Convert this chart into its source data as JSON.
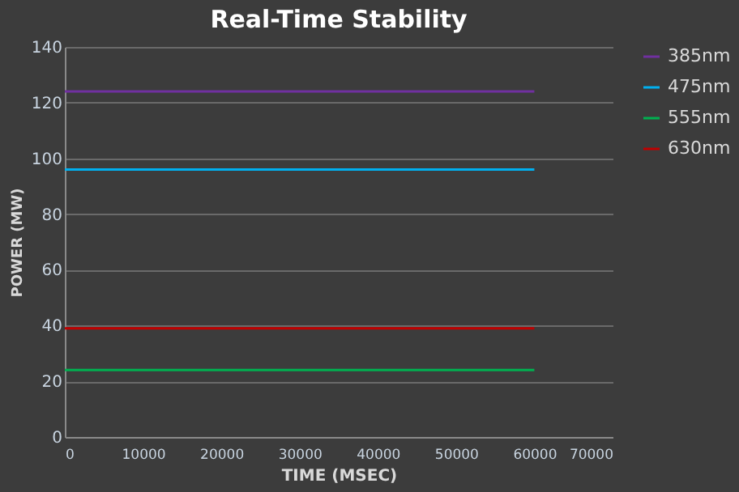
{
  "chart_data": {
    "type": "line",
    "title": "Real-Time Stability",
    "xlabel": "TIME  (MSEC)",
    "ylabel": "POWER (MW)",
    "x": [
      0,
      60000
    ],
    "series": [
      {
        "name": "385nm",
        "color": "#7030a0",
        "values": [
          124,
          124
        ]
      },
      {
        "name": "475nm",
        "color": "#00b0f0",
        "values": [
          96,
          96
        ]
      },
      {
        "name": "555nm",
        "color": "#00b050",
        "values": [
          24,
          24
        ]
      },
      {
        "name": "630nm",
        "color": "#c00000",
        "values": [
          39,
          39
        ]
      }
    ],
    "xlim": [
      0,
      70000
    ],
    "xticks": [
      0,
      10000,
      20000,
      30000,
      40000,
      50000,
      60000,
      70000
    ],
    "ylim": [
      0,
      140
    ],
    "yticks": [
      0,
      20,
      40,
      60,
      80,
      100,
      120,
      140
    ],
    "grid": "y",
    "legend": "right",
    "marker": "none",
    "line_style": "solid"
  }
}
